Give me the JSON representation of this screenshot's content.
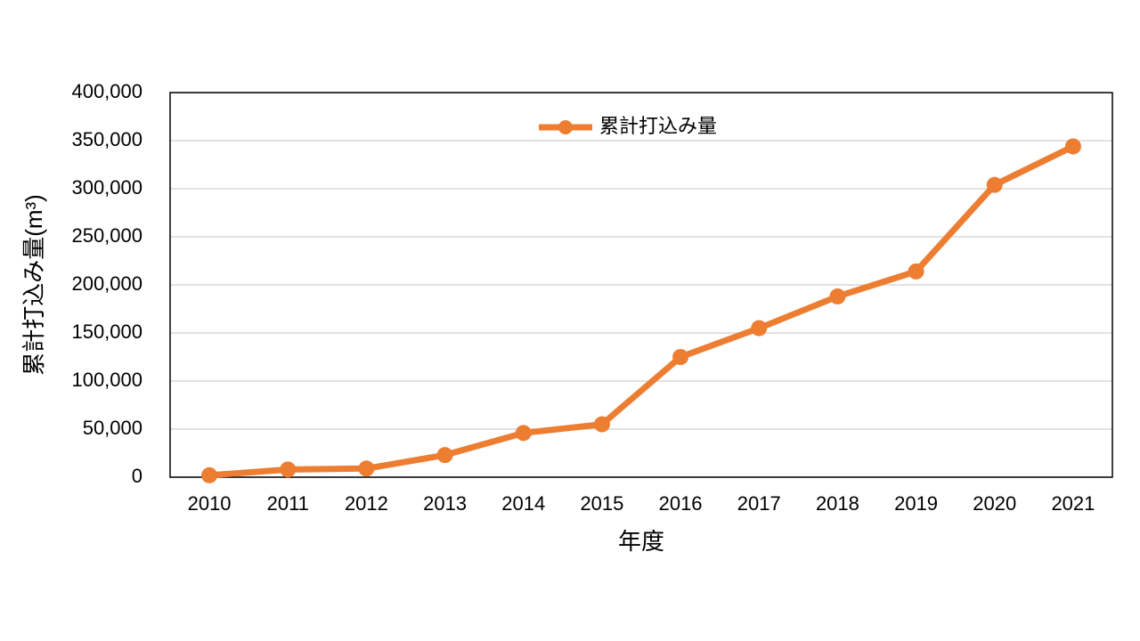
{
  "chart_data": {
    "type": "line",
    "x_label": "年度",
    "y_label": "累計打込み量(m³)",
    "categories": [
      "2010",
      "2011",
      "2012",
      "2013",
      "2014",
      "2015",
      "2016",
      "2017",
      "2018",
      "2019",
      "2020",
      "2021"
    ],
    "series": [
      {
        "name": "累計打込み量",
        "color": "#ed7d31",
        "values": [
          2000,
          8000,
          9000,
          23000,
          46000,
          55000,
          125000,
          155000,
          188000,
          214000,
          304000,
          344000
        ]
      }
    ],
    "ylim": [
      0,
      400000
    ],
    "yticks": [
      0,
      {
        "value": 50000,
        "label": "50,000"
      },
      {
        "value": 100000,
        "label": "100,000"
      },
      {
        "value": 150000,
        "label": "150,000"
      },
      {
        "value": 200000,
        "label": "200,000"
      },
      {
        "value": 250000,
        "label": "250,000"
      },
      {
        "value": 300000,
        "label": "300,000"
      },
      {
        "value": 350000,
        "label": "350,000"
      },
      {
        "value": 400000,
        "label": "400,000"
      }
    ],
    "grid": true,
    "legend": "top"
  }
}
